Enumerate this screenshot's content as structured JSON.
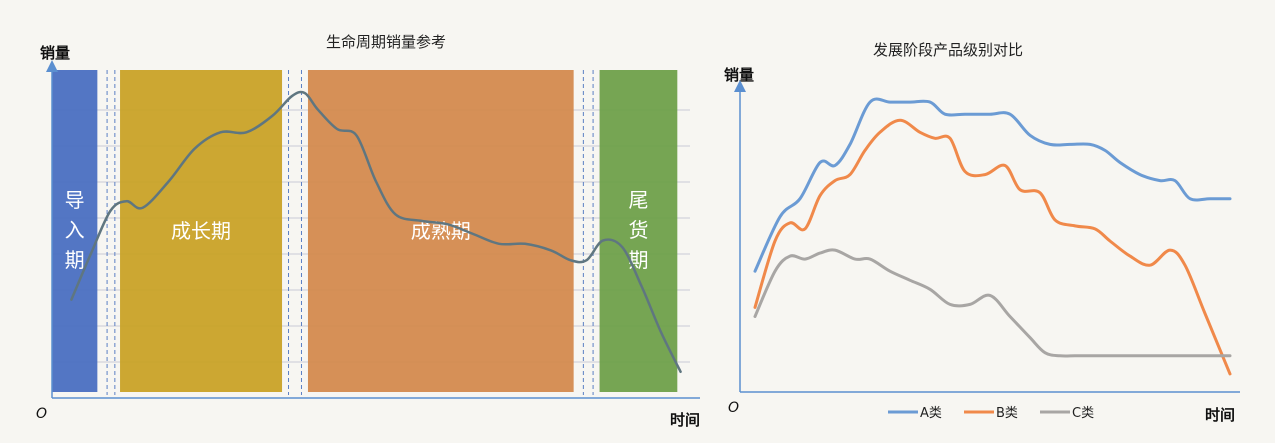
{
  "chart_data": [
    {
      "type": "line",
      "title": "生命周期销量参考",
      "ylabel": "销量",
      "xlabel": "时间",
      "origin_label": "O",
      "x_domain": [
        0,
        100
      ],
      "y_domain": [
        0,
        100
      ],
      "stages": [
        {
          "label": "导入期",
          "chars": [
            "导",
            "入",
            "期"
          ],
          "vertical": true,
          "x_start": 0,
          "x_end": 7,
          "color": "#4a6fc1"
        },
        {
          "label": "成长期",
          "chars": [
            "成长期"
          ],
          "vertical": false,
          "x_start": 10.5,
          "x_end": 35.5,
          "color": "#c9a227"
        },
        {
          "label": "成熟期",
          "chars": [
            "成熟期"
          ],
          "vertical": false,
          "x_start": 39.5,
          "x_end": 80.5,
          "color": "#d48a4e"
        },
        {
          "label": "尾货期",
          "chars": [
            "尾",
            "货",
            "期"
          ],
          "vertical": true,
          "x_start": 84.5,
          "x_end": 96.5,
          "color": "#6fa04a"
        }
      ],
      "stage_dividers": [
        8.5,
        9.7,
        36.5,
        38.5,
        82,
        83.5
      ],
      "series": [
        {
          "color": "#5f7680",
          "x": [
            3,
            6,
            9,
            11.5,
            14,
            18,
            22,
            26,
            30,
            34,
            37,
            39,
            41,
            44,
            47,
            50,
            53,
            57,
            61,
            65,
            69,
            73,
            77,
            80,
            82.5,
            85,
            88,
            91,
            94,
            97
          ],
          "y": [
            30,
            44,
            57,
            60,
            58,
            66,
            76,
            81,
            81,
            86,
            92,
            93,
            88,
            82,
            80,
            66,
            56,
            54,
            53,
            50,
            47,
            47,
            45,
            42,
            42,
            48,
            46,
            34,
            20,
            8
          ]
        }
      ]
    },
    {
      "type": "line",
      "title": "发展阶段产品级别对比",
      "ylabel": "销量",
      "xlabel": "时间",
      "origin_label": "O",
      "x_domain": [
        0,
        100
      ],
      "y_domain": [
        0,
        100
      ],
      "series": [
        {
          "name": "A类",
          "color": "#6b9bd4",
          "x": [
            3,
            8,
            12,
            16,
            19,
            22,
            26,
            30,
            34,
            38,
            41,
            45,
            50,
            54,
            58,
            62,
            66,
            70,
            73,
            76,
            80,
            84,
            87,
            90,
            94,
            98
          ],
          "y": [
            40,
            58,
            64,
            76,
            75,
            82,
            96,
            96,
            96,
            96,
            92,
            92,
            92,
            92,
            85,
            82,
            82,
            82,
            80,
            76,
            72,
            70,
            70,
            64,
            64,
            64
          ]
        },
        {
          "name": "B类",
          "color": "#f0894a",
          "x": [
            3,
            7,
            10,
            13,
            16,
            19,
            22,
            25,
            28,
            32,
            36,
            39,
            42,
            45,
            49,
            53,
            56,
            60,
            63,
            67,
            71,
            74,
            78,
            82,
            86,
            89,
            93,
            98
          ],
          "y": [
            28,
            50,
            56,
            54,
            65,
            70,
            72,
            80,
            86,
            90,
            86,
            84,
            84,
            73,
            72,
            75,
            67,
            66,
            57,
            55,
            54,
            50,
            45,
            42,
            47,
            42,
            26,
            6
          ]
        },
        {
          "name": "C类",
          "color": "#a8a6a4",
          "x": [
            3,
            7,
            10,
            13,
            16,
            19,
            23,
            26,
            30,
            34,
            38,
            42,
            46,
            50,
            54,
            58,
            61,
            64,
            67,
            70,
            74,
            78,
            82,
            86,
            90,
            94,
            98
          ],
          "y": [
            25,
            40,
            45,
            44,
            46,
            47,
            44,
            44,
            40,
            37,
            34,
            29,
            29,
            32,
            25,
            18,
            13,
            12,
            12,
            12,
            12,
            12,
            12,
            12,
            12,
            12,
            12
          ]
        }
      ],
      "legend_position": "bottom"
    }
  ]
}
